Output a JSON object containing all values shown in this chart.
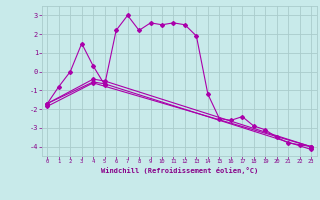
{
  "background_color": "#c8eaea",
  "grid_color": "#aacccc",
  "line_color": "#aa00aa",
  "marker_color": "#aa00aa",
  "xlabel": "Windchill (Refroidissement éolien,°C)",
  "xlabel_color": "#880088",
  "tick_color": "#880088",
  "xlim": [
    -0.5,
    23.5
  ],
  "ylim": [
    -4.5,
    3.5
  ],
  "yticks": [
    -4,
    -3,
    -2,
    -1,
    0,
    1,
    2,
    3
  ],
  "xticks": [
    0,
    1,
    2,
    3,
    4,
    5,
    6,
    7,
    8,
    9,
    10,
    11,
    12,
    13,
    14,
    15,
    16,
    17,
    18,
    19,
    20,
    21,
    22,
    23
  ],
  "series1_x": [
    0,
    1,
    2,
    3,
    4,
    5,
    6,
    7,
    8,
    9,
    10,
    11,
    12,
    13,
    14,
    15,
    16,
    17,
    18,
    19,
    20,
    21,
    22,
    23
  ],
  "series1_y": [
    -1.7,
    -0.8,
    0.0,
    1.5,
    0.3,
    -0.7,
    2.2,
    3.0,
    2.2,
    2.6,
    2.5,
    2.6,
    2.5,
    1.9,
    -1.2,
    -2.5,
    -2.6,
    -2.4,
    -2.9,
    -3.1,
    -3.5,
    -3.8,
    -3.9,
    -4.0
  ],
  "series2_x": [
    0,
    4,
    5,
    23
  ],
  "series2_y": [
    -1.7,
    -0.4,
    -0.5,
    -4.0
  ],
  "series3_x": [
    0,
    4,
    5,
    23
  ],
  "series3_y": [
    -1.7,
    -0.55,
    -0.65,
    -4.15
  ],
  "series4_x": [
    0,
    4,
    23
  ],
  "series4_y": [
    -1.85,
    -0.6,
    -4.0
  ]
}
